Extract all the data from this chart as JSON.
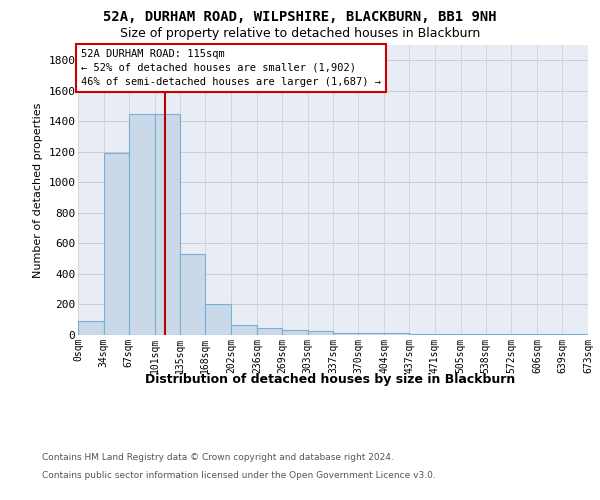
{
  "title1": "52A, DURHAM ROAD, WILPSHIRE, BLACKBURN, BB1 9NH",
  "title2": "Size of property relative to detached houses in Blackburn",
  "xlabel": "Distribution of detached houses by size in Blackburn",
  "ylabel": "Number of detached properties",
  "bin_edges": [
    0,
    34,
    67,
    101,
    135,
    168,
    202,
    236,
    269,
    303,
    337,
    370,
    404,
    437,
    471,
    505,
    538,
    572,
    606,
    639,
    673
  ],
  "bin_counts": [
    90,
    1195,
    1450,
    1450,
    530,
    205,
    65,
    48,
    33,
    27,
    10,
    10,
    10,
    5,
    5,
    5,
    5,
    5,
    5,
    5
  ],
  "bar_color": "#c9d9ea",
  "bar_edge_color": "#7baed4",
  "property_size": 115,
  "vline_color": "#bb0000",
  "annotation_line1": "52A DURHAM ROAD: 115sqm",
  "annotation_line2": "← 52% of detached houses are smaller (1,902)",
  "annotation_line3": "46% of semi-detached houses are larger (1,687) →",
  "annotation_box_edgecolor": "#cc0000",
  "annotation_box_facecolor": "#ffffff",
  "tick_labels": [
    "0sqm",
    "34sqm",
    "67sqm",
    "101sqm",
    "135sqm",
    "168sqm",
    "202sqm",
    "236sqm",
    "269sqm",
    "303sqm",
    "337sqm",
    "370sqm",
    "404sqm",
    "437sqm",
    "471sqm",
    "505sqm",
    "538sqm",
    "572sqm",
    "606sqm",
    "639sqm",
    "673sqm"
  ],
  "ylim_max": 1900,
  "yticks": [
    0,
    200,
    400,
    600,
    800,
    1000,
    1200,
    1400,
    1600,
    1800
  ],
  "grid_color": "#cccccc",
  "background_color": "#e8edf5",
  "footer_text1": "Contains HM Land Registry data © Crown copyright and database right 2024.",
  "footer_text2": "Contains public sector information licensed under the Open Government Licence v3.0.",
  "title1_fontsize": 10,
  "title2_fontsize": 9,
  "xlabel_fontsize": 9,
  "ylabel_fontsize": 8,
  "tick_fontsize": 7,
  "annotation_fontsize": 7.5,
  "footer_fontsize": 6.5
}
